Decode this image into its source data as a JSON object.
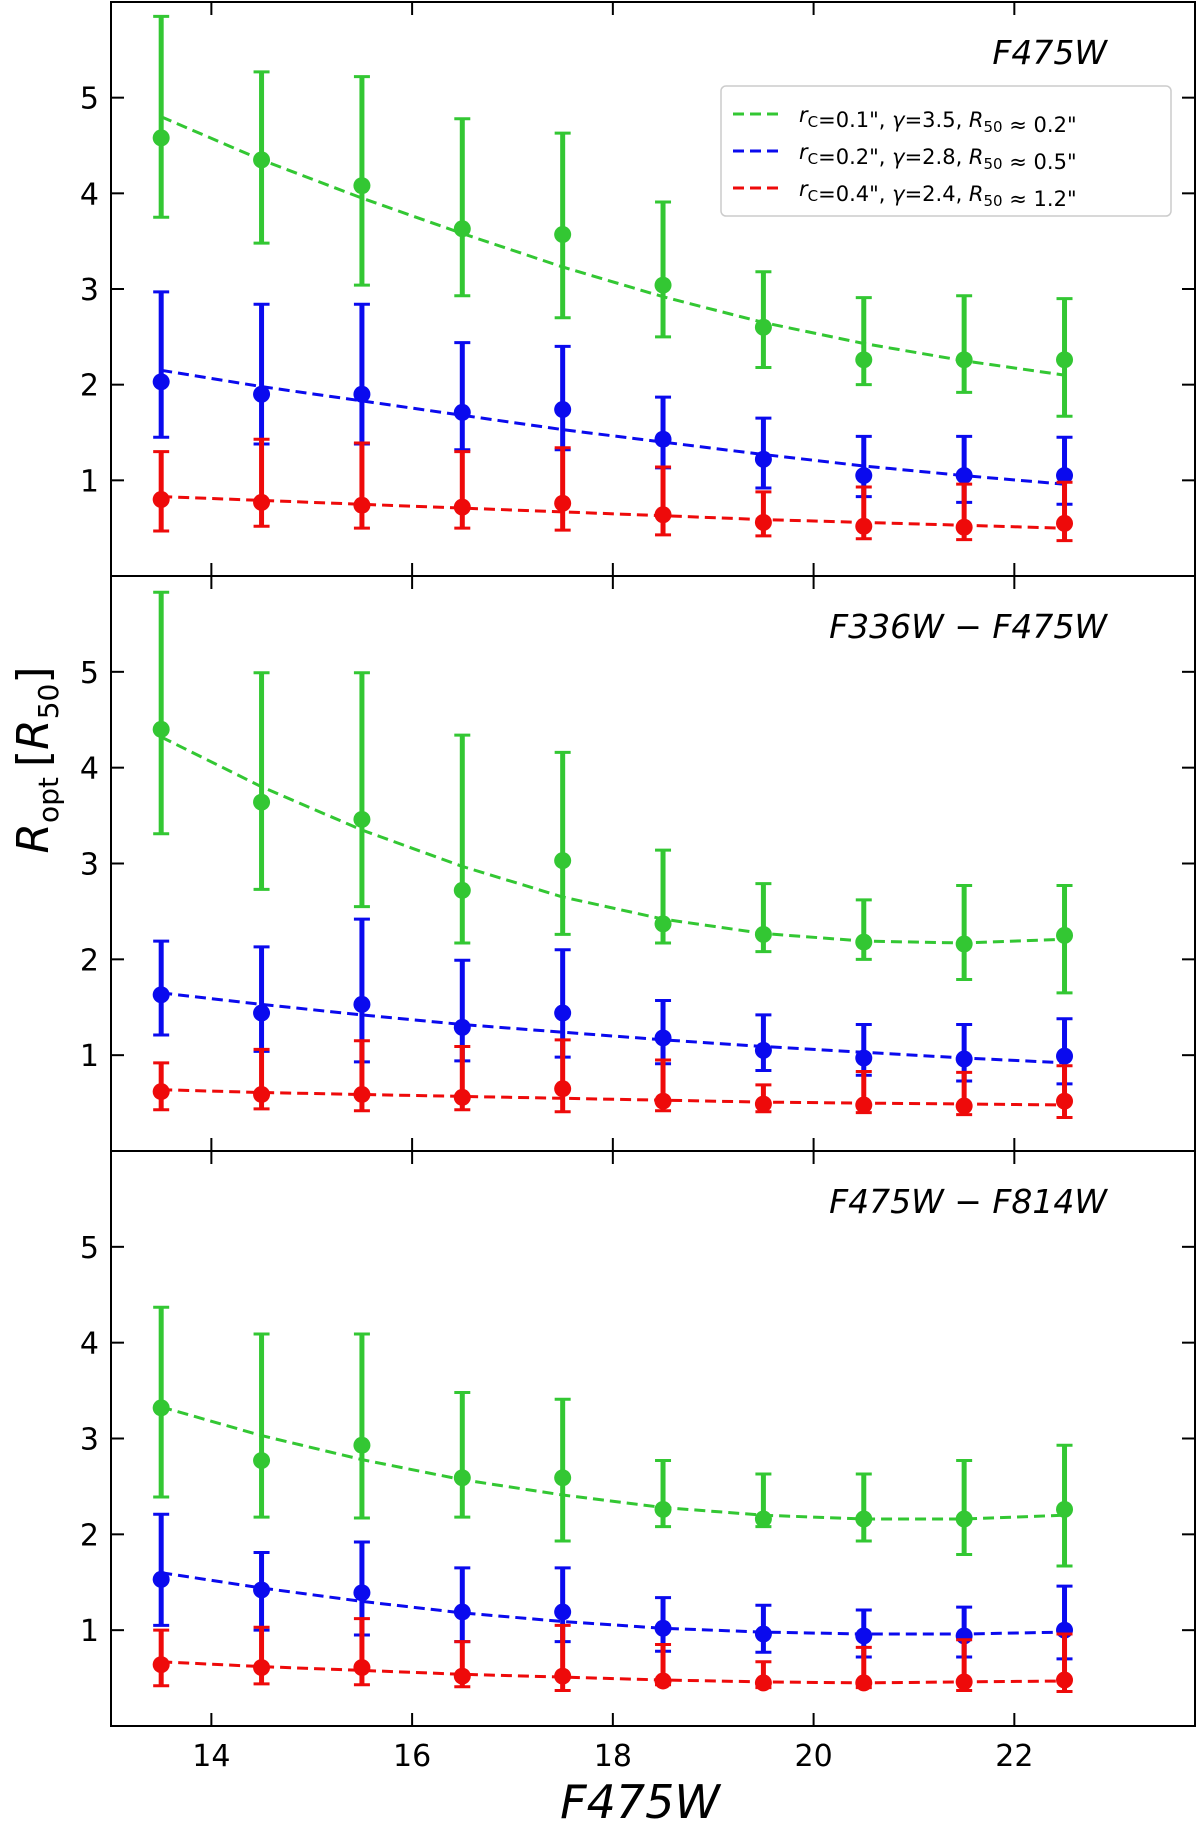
{
  "figure": {
    "xlabel": "F475W",
    "ylabel_main": "R",
    "ylabel_sub": "opt",
    "ylabel_bracket_var": "R",
    "ylabel_bracket_sub": "50"
  },
  "chart_data": [
    {
      "type": "scatter",
      "title": "F475W",
      "xlim": [
        13.0,
        23.8
      ],
      "ylim": [
        0.0,
        6.0
      ],
      "xticks": [
        "14",
        "16",
        "18",
        "20",
        "22"
      ],
      "yticks": [
        "1",
        "2",
        "3",
        "4",
        "5"
      ],
      "x": [
        13.5,
        14.5,
        15.5,
        16.5,
        17.5,
        18.5,
        19.5,
        20.5,
        21.5,
        22.5
      ],
      "legend_position": "top-right",
      "series": [
        {
          "color": "#33c733",
          "legend": {
            "rc": "0.1\"",
            "gamma": "3.5",
            "r50": "0.2\""
          },
          "y": [
            4.58,
            4.35,
            4.08,
            3.63,
            3.57,
            3.04,
            2.6,
            2.26,
            2.26,
            2.26
          ],
          "y_upper": [
            5.85,
            5.27,
            5.22,
            4.78,
            4.63,
            3.91,
            3.18,
            2.91,
            2.93,
            2.9
          ],
          "y_lower": [
            3.75,
            3.48,
            3.04,
            2.93,
            2.7,
            2.5,
            2.18,
            2.0,
            1.92,
            1.67
          ],
          "fit": [
            4.8,
            4.35,
            3.95,
            3.58,
            3.23,
            2.92,
            2.65,
            2.43,
            2.25,
            2.1
          ]
        },
        {
          "color": "#0a0aee",
          "legend": {
            "rc": "0.2\"",
            "gamma": "2.8",
            "r50": "0.5\""
          },
          "y": [
            2.03,
            1.9,
            1.9,
            1.71,
            1.74,
            1.43,
            1.22,
            1.05,
            1.05,
            1.05
          ],
          "y_upper": [
            2.97,
            2.84,
            2.84,
            2.44,
            2.4,
            1.87,
            1.65,
            1.46,
            1.46,
            1.45
          ],
          "y_lower": [
            1.45,
            1.38,
            1.38,
            1.32,
            1.32,
            1.13,
            0.92,
            0.83,
            0.77,
            0.75
          ],
          "fit": [
            2.15,
            1.98,
            1.83,
            1.68,
            1.53,
            1.4,
            1.27,
            1.15,
            1.05,
            0.96
          ]
        },
        {
          "color": "#ee0a0a",
          "legend": {
            "rc": "0.4\"",
            "gamma": "2.4",
            "r50": "1.2\""
          },
          "y": [
            0.8,
            0.77,
            0.74,
            0.72,
            0.76,
            0.64,
            0.56,
            0.52,
            0.51,
            0.55
          ],
          "y_upper": [
            1.3,
            1.43,
            1.39,
            1.3,
            1.34,
            1.14,
            0.88,
            0.93,
            0.96,
            0.98
          ],
          "y_lower": [
            0.47,
            0.52,
            0.5,
            0.5,
            0.48,
            0.43,
            0.42,
            0.39,
            0.38,
            0.37
          ],
          "fit": [
            0.83,
            0.79,
            0.75,
            0.71,
            0.67,
            0.63,
            0.59,
            0.56,
            0.53,
            0.5
          ]
        }
      ]
    },
    {
      "type": "scatter",
      "title": "F336W − F475W",
      "xlim": [
        13.0,
        23.8
      ],
      "ylim": [
        0.0,
        6.0
      ],
      "xticks": [
        "14",
        "16",
        "18",
        "20",
        "22"
      ],
      "yticks": [
        "1",
        "2",
        "3",
        "4",
        "5"
      ],
      "x": [
        13.5,
        14.5,
        15.5,
        16.5,
        17.5,
        18.5,
        19.5,
        20.5,
        21.5,
        22.5
      ],
      "series": [
        {
          "color": "#33c733",
          "y": [
            4.4,
            3.64,
            3.46,
            2.72,
            3.03,
            2.37,
            2.26,
            2.18,
            2.16,
            2.25
          ],
          "y_upper": [
            5.83,
            4.99,
            4.99,
            4.34,
            4.16,
            3.14,
            2.79,
            2.62,
            2.77,
            2.77
          ],
          "y_lower": [
            3.31,
            2.73,
            2.55,
            2.17,
            2.26,
            2.17,
            2.08,
            2.0,
            1.79,
            1.65
          ],
          "fit": [
            4.32,
            3.8,
            3.35,
            2.97,
            2.65,
            2.42,
            2.27,
            2.19,
            2.17,
            2.21
          ]
        },
        {
          "color": "#0a0aee",
          "y": [
            1.63,
            1.44,
            1.53,
            1.29,
            1.44,
            1.18,
            1.05,
            0.97,
            0.96,
            0.99
          ],
          "y_upper": [
            2.19,
            2.13,
            2.42,
            1.99,
            2.1,
            1.57,
            1.42,
            1.32,
            1.32,
            1.38
          ],
          "y_lower": [
            1.21,
            1.04,
            0.93,
            0.94,
            0.98,
            0.91,
            0.84,
            0.79,
            0.73,
            0.7
          ],
          "fit": [
            1.65,
            1.53,
            1.42,
            1.32,
            1.24,
            1.16,
            1.09,
            1.03,
            0.97,
            0.92
          ]
        },
        {
          "color": "#ee0a0a",
          "y": [
            0.62,
            0.59,
            0.59,
            0.56,
            0.65,
            0.52,
            0.49,
            0.48,
            0.47,
            0.52
          ],
          "y_upper": [
            0.92,
            1.06,
            1.15,
            1.09,
            1.16,
            0.95,
            0.69,
            0.83,
            0.82,
            0.89
          ],
          "y_lower": [
            0.43,
            0.44,
            0.42,
            0.43,
            0.41,
            0.42,
            0.41,
            0.4,
            0.38,
            0.35
          ],
          "fit": [
            0.64,
            0.61,
            0.59,
            0.57,
            0.55,
            0.53,
            0.51,
            0.5,
            0.49,
            0.48
          ]
        }
      ]
    },
    {
      "type": "scatter",
      "title": "F475W − F814W",
      "xlim": [
        13.0,
        23.8
      ],
      "ylim": [
        0.0,
        6.0
      ],
      "xticks": [
        "14",
        "16",
        "18",
        "20",
        "22"
      ],
      "yticks": [
        "1",
        "2",
        "3",
        "4",
        "5"
      ],
      "x": [
        13.5,
        14.5,
        15.5,
        16.5,
        17.5,
        18.5,
        19.5,
        20.5,
        21.5,
        22.5
      ],
      "series": [
        {
          "color": "#33c733",
          "y": [
            3.32,
            2.77,
            2.93,
            2.59,
            2.59,
            2.26,
            2.16,
            2.16,
            2.16,
            2.26
          ],
          "y_upper": [
            4.37,
            4.09,
            4.09,
            3.48,
            3.41,
            2.77,
            2.63,
            2.63,
            2.77,
            2.93
          ],
          "y_lower": [
            2.39,
            2.18,
            2.17,
            2.18,
            1.93,
            2.08,
            2.08,
            1.93,
            1.79,
            1.67
          ],
          "fit": [
            3.33,
            3.03,
            2.78,
            2.57,
            2.41,
            2.28,
            2.2,
            2.16,
            2.16,
            2.2
          ]
        },
        {
          "color": "#0a0aee",
          "y": [
            1.53,
            1.42,
            1.39,
            1.19,
            1.19,
            1.02,
            0.96,
            0.94,
            0.94,
            1.0
          ],
          "y_upper": [
            2.21,
            1.81,
            1.92,
            1.65,
            1.65,
            1.34,
            1.26,
            1.21,
            1.24,
            1.46
          ],
          "y_lower": [
            1.05,
            1.0,
            0.95,
            0.88,
            0.88,
            0.78,
            0.77,
            0.72,
            0.72,
            0.7
          ],
          "fit": [
            1.6,
            1.44,
            1.3,
            1.18,
            1.09,
            1.02,
            0.98,
            0.96,
            0.96,
            0.98
          ]
        },
        {
          "color": "#ee0a0a",
          "y": [
            0.64,
            0.61,
            0.61,
            0.52,
            0.52,
            0.47,
            0.45,
            0.45,
            0.46,
            0.48
          ],
          "y_upper": [
            1.0,
            1.03,
            1.12,
            0.88,
            1.05,
            0.85,
            0.67,
            0.82,
            0.9,
            0.96
          ],
          "y_lower": [
            0.42,
            0.44,
            0.43,
            0.41,
            0.37,
            0.43,
            0.4,
            0.4,
            0.37,
            0.36
          ],
          "fit": [
            0.67,
            0.62,
            0.58,
            0.54,
            0.51,
            0.48,
            0.46,
            0.45,
            0.46,
            0.47
          ]
        }
      ]
    }
  ]
}
